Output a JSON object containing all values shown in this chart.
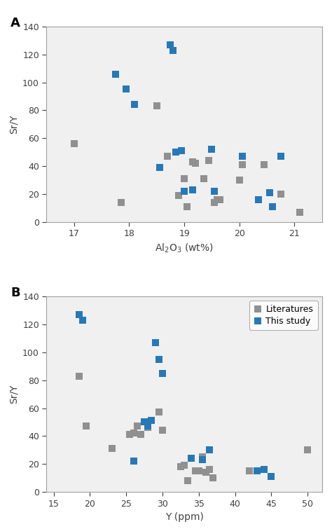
{
  "panel_A": {
    "blue_x": [
      17.75,
      17.95,
      18.1,
      18.55,
      18.75,
      18.8,
      18.85,
      18.95,
      19.0,
      19.15,
      19.5,
      19.55,
      20.05,
      20.35,
      20.55,
      20.75,
      20.6
    ],
    "blue_y": [
      106,
      95,
      84,
      39,
      127,
      123,
      50,
      51,
      22,
      23,
      52,
      22,
      47,
      16,
      21,
      47,
      11
    ],
    "gray_x": [
      17.0,
      17.85,
      18.5,
      18.7,
      18.9,
      19.0,
      19.05,
      19.15,
      19.2,
      19.35,
      19.45,
      19.55,
      19.6,
      19.65,
      20.0,
      20.05,
      20.45,
      20.75,
      21.1
    ],
    "gray_y": [
      56,
      14,
      83,
      47,
      19,
      31,
      11,
      43,
      42,
      31,
      44,
      14,
      16,
      16,
      30,
      41,
      41,
      20,
      7
    ],
    "xlabel": "Al$_2$O$_3$ (wt%)",
    "ylabel": "Sr/Y",
    "xlim": [
      16.5,
      21.5
    ],
    "ylim": [
      0,
      140
    ],
    "xticks": [
      17,
      18,
      19,
      20,
      21
    ],
    "yticks": [
      0,
      20,
      40,
      60,
      80,
      100,
      120,
      140
    ],
    "label": "A"
  },
  "panel_B": {
    "blue_x": [
      18.5,
      19.0,
      26.0,
      27.5,
      28.0,
      28.5,
      29.0,
      29.5,
      30.0,
      34.0,
      35.5,
      36.5,
      43.0,
      44.0,
      45.0
    ],
    "blue_y": [
      127,
      123,
      22,
      50,
      47,
      51,
      107,
      95,
      85,
      24,
      23,
      30,
      15,
      16,
      11
    ],
    "gray_x": [
      18.5,
      19.5,
      23.0,
      25.5,
      26.0,
      26.5,
      27.0,
      28.0,
      29.5,
      30.0,
      32.5,
      33.0,
      33.5,
      34.5,
      35.0,
      35.5,
      36.0,
      36.5,
      37.0,
      42.0,
      44.0,
      50.0
    ],
    "gray_y": [
      83,
      47,
      31,
      41,
      42,
      47,
      41,
      46,
      57,
      44,
      18,
      19,
      8,
      15,
      15,
      25,
      14,
      16,
      10,
      15,
      16,
      30
    ],
    "xlabel": "Y (ppm)",
    "ylabel": "Sr/Y",
    "xlim": [
      14,
      52
    ],
    "ylim": [
      0,
      140
    ],
    "xticks": [
      15,
      20,
      25,
      30,
      35,
      40,
      45,
      50
    ],
    "yticks": [
      0,
      20,
      40,
      60,
      80,
      100,
      120,
      140
    ],
    "label": "B"
  },
  "blue_color": "#2878b5",
  "gray_color": "#909090",
  "legend_labels": [
    "Literatures",
    "This study"
  ],
  "marker_size": 48,
  "fig_width": 4.74,
  "fig_height": 7.55,
  "spine_color": "#a0a0a0",
  "bg_color": "#f0f0f0"
}
